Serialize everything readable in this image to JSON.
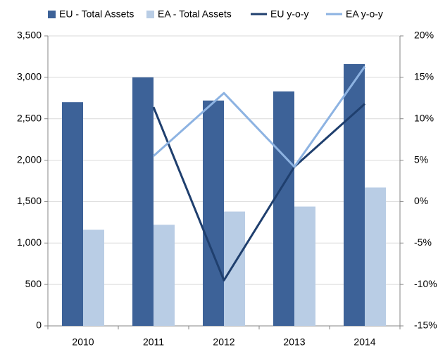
{
  "chart_data": {
    "type": "combo",
    "categories": [
      "2010",
      "2011",
      "2012",
      "2013",
      "2014"
    ],
    "series": [
      {
        "name": "EU - Total Assets",
        "type": "bar",
        "color": "#3d6298",
        "values": [
          2700,
          3000,
          2720,
          2830,
          3160
        ]
      },
      {
        "name": "EA - Total Assets",
        "type": "bar",
        "color": "#b9cde5",
        "values": [
          1160,
          1220,
          1380,
          1440,
          1670
        ]
      },
      {
        "name": "EU y-o-y",
        "type": "line",
        "axis": "y2",
        "color": "#1f3f6e",
        "values": [
          null,
          11.4,
          -9.5,
          4.2,
          11.8
        ]
      },
      {
        "name": "EA y-o-y",
        "type": "line",
        "axis": "y2",
        "color": "#8db3e2",
        "values": [
          null,
          5.5,
          13.1,
          4.2,
          16.3
        ]
      }
    ],
    "ylim": [
      0,
      3500
    ],
    "yticks": [
      0,
      500,
      {
        "value": 1000,
        "label": "1,000"
      },
      {
        "value": 1500,
        "label": "1,500"
      },
      {
        "value": 2000,
        "label": "2,000"
      },
      {
        "value": 2500,
        "label": "2,500"
      },
      {
        "value": 3000,
        "label": "3,000"
      },
      {
        "value": 3500,
        "label": "3,500"
      }
    ],
    "y2lim": [
      -15,
      20
    ],
    "y2ticks": [
      {
        "value": -15,
        "label": "-15%"
      },
      {
        "value": -10,
        "label": "-10%"
      },
      {
        "value": -5,
        "label": "-5%"
      },
      {
        "value": 0,
        "label": "0%"
      },
      {
        "value": 5,
        "label": "5%"
      },
      {
        "value": 10,
        "label": "10%"
      },
      {
        "value": 15,
        "label": "15%"
      },
      {
        "value": 20,
        "label": "20%"
      }
    ],
    "grid": true,
    "legend": "top"
  }
}
